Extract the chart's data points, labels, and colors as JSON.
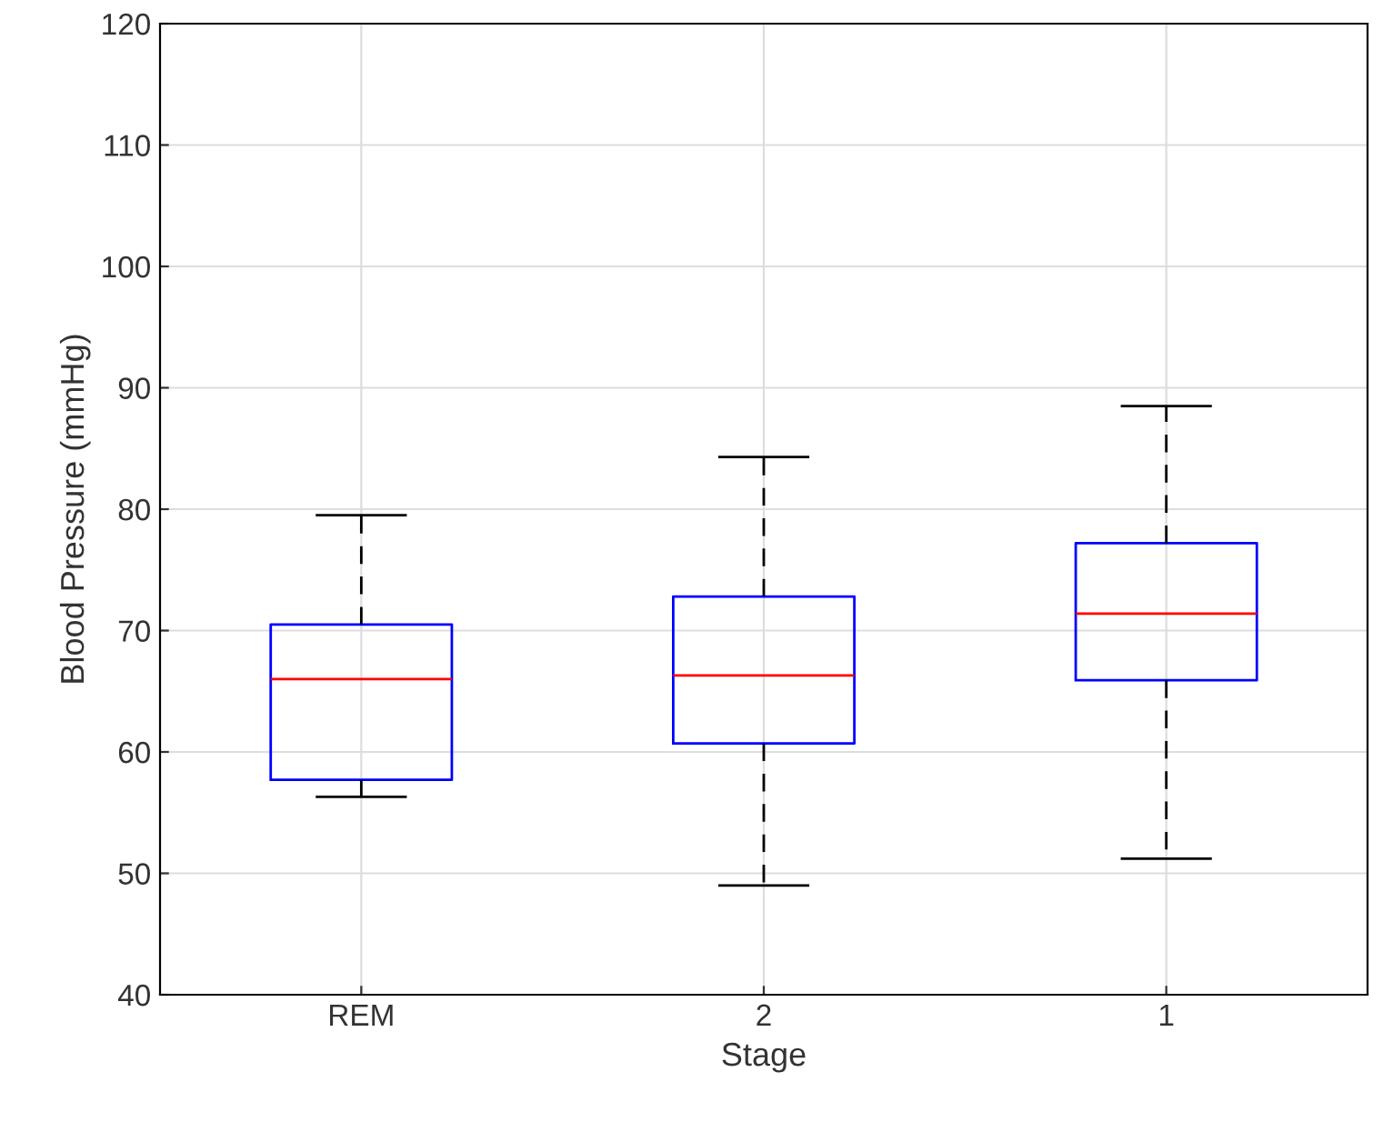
{
  "chart_data": {
    "type": "box",
    "xlabel": "Stage",
    "ylabel": "Blood Pressure (mmHg)",
    "categories": [
      "REM",
      "2",
      "1"
    ],
    "boxes": [
      {
        "low": 56.3,
        "q1": 57.7,
        "median": 66.0,
        "q3": 70.5,
        "high": 79.5
      },
      {
        "low": 49.0,
        "q1": 60.7,
        "median": 66.3,
        "q3": 72.8,
        "high": 84.3
      },
      {
        "low": 51.2,
        "q1": 65.9,
        "median": 71.4,
        "q3": 77.2,
        "high": 88.5
      }
    ],
    "color": "#0000ff",
    "ylim": [
      40,
      120
    ],
    "yticks": [
      40,
      50,
      60,
      70,
      80,
      90,
      100,
      110,
      120
    ],
    "grid": true
  }
}
